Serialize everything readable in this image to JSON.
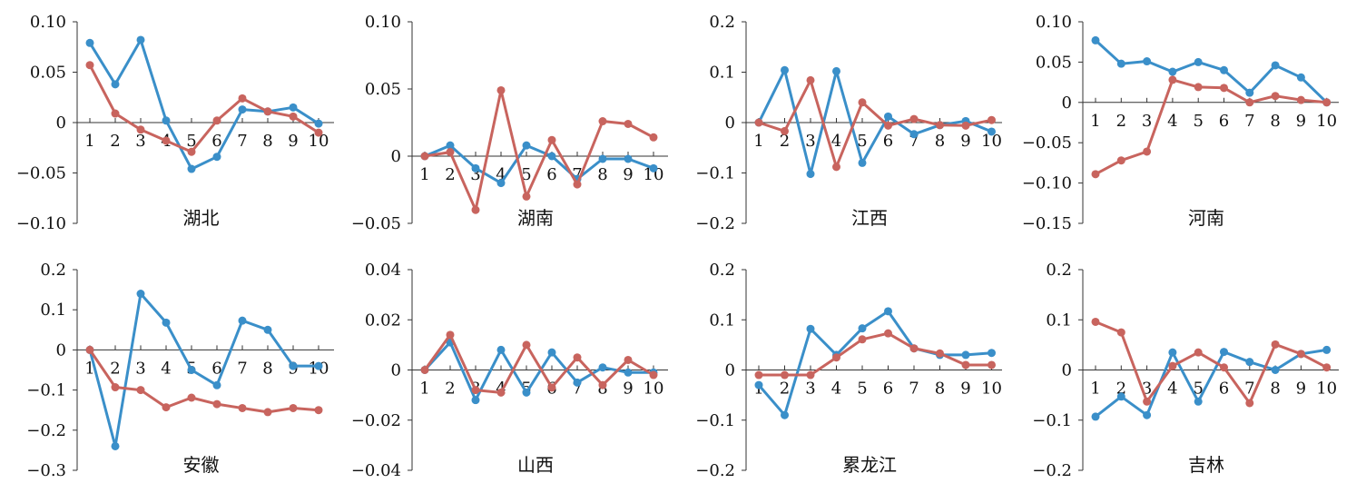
{
  "colors": {
    "series_a": "#3a8fc9",
    "series_b": "#c8645e",
    "axis": "#333333"
  },
  "chart_data": [
    {
      "type": "line",
      "title": "湖北",
      "ylim": [
        -0.1,
        0.1
      ],
      "ytick_labels": [
        "0.10",
        "0.05",
        "0",
        "−0.05",
        "−0.10"
      ],
      "categories": [
        "1",
        "2",
        "3",
        "4",
        "5",
        "6",
        "7",
        "8",
        "9",
        "10"
      ],
      "series": [
        {
          "values": [
            0.079,
            0.038,
            0.082,
            0.002,
            -0.046,
            -0.034,
            0.013,
            0.011,
            0.015,
            -0.001
          ]
        },
        {
          "values": [
            0.057,
            0.009,
            -0.007,
            -0.018,
            -0.029,
            0.002,
            0.024,
            0.011,
            0.006,
            -0.01
          ]
        }
      ]
    },
    {
      "type": "line",
      "title": "湖南",
      "ylim": [
        -0.05,
        0.1
      ],
      "ytick_labels": [
        "0.10",
        "0.05",
        "0",
        "−0.05"
      ],
      "categories": [
        "1",
        "2",
        "3",
        "4",
        "5",
        "6",
        "7",
        "8",
        "9",
        "10"
      ],
      "series": [
        {
          "values": [
            0,
            0.008,
            -0.009,
            -0.02,
            0.008,
            0,
            -0.017,
            -0.002,
            -0.002,
            -0.009
          ]
        },
        {
          "values": [
            0,
            0.003,
            -0.04,
            0.049,
            -0.03,
            0.012,
            -0.021,
            0.026,
            0.024,
            0.014
          ]
        }
      ]
    },
    {
      "type": "line",
      "title": "江西",
      "ylim": [
        -0.2,
        0.2
      ],
      "ytick_labels": [
        "0.2",
        "0.1",
        "0",
        "−0.1",
        "−0.2"
      ],
      "categories": [
        "1",
        "2",
        "3",
        "4",
        "5",
        "6",
        "7",
        "8",
        "9",
        "10"
      ],
      "series": [
        {
          "values": [
            0,
            0.104,
            -0.102,
            0.102,
            -0.08,
            0.012,
            -0.023,
            -0.005,
            0.003,
            -0.018
          ]
        },
        {
          "values": [
            0,
            -0.017,
            0.084,
            -0.088,
            0.04,
            -0.006,
            0.007,
            -0.005,
            -0.006,
            0.005
          ]
        }
      ]
    },
    {
      "type": "line",
      "title": "河南",
      "ylim": [
        -0.15,
        0.1
      ],
      "ytick_labels": [
        "0.10",
        "0.05",
        "0",
        "−0.05",
        "−0.10",
        "−0.15"
      ],
      "categories": [
        "1",
        "2",
        "3",
        "4",
        "5",
        "6",
        "7",
        "8",
        "9",
        "10"
      ],
      "series": [
        {
          "values": [
            0.077,
            0.048,
            0.051,
            0.038,
            0.05,
            0.04,
            0.012,
            0.046,
            0.031,
            0
          ]
        },
        {
          "values": [
            -0.089,
            -0.072,
            -0.061,
            0.028,
            0.019,
            0.018,
            0,
            0.008,
            0.003,
            0
          ]
        }
      ]
    },
    {
      "type": "line",
      "title": "安徽",
      "ylim": [
        -0.3,
        0.2
      ],
      "ytick_labels": [
        "0.2",
        "0.1",
        "0",
        "−0.1",
        "−0.2",
        "−0.3"
      ],
      "categories": [
        "1",
        "2",
        "3",
        "4",
        "5",
        "6",
        "7",
        "8",
        "9",
        "10"
      ],
      "series": [
        {
          "values": [
            0,
            -0.24,
            0.14,
            0.068,
            -0.05,
            -0.088,
            0.073,
            0.05,
            -0.04,
            -0.04
          ]
        },
        {
          "values": [
            0,
            -0.093,
            -0.1,
            -0.143,
            -0.119,
            -0.135,
            -0.145,
            -0.155,
            -0.145,
            -0.15
          ]
        }
      ]
    },
    {
      "type": "line",
      "title": "山西",
      "ylim": [
        -0.04,
        0.04
      ],
      "ytick_labels": [
        "0.04",
        "0.02",
        "0",
        "−0.02",
        "−0.04"
      ],
      "categories": [
        "1",
        "2",
        "3",
        "4",
        "5",
        "6",
        "7",
        "8",
        "9",
        "10"
      ],
      "series": [
        {
          "values": [
            0,
            0.011,
            -0.012,
            0.008,
            -0.009,
            0.007,
            -0.005,
            0.001,
            -0.001,
            -0.001
          ]
        },
        {
          "values": [
            0,
            0.014,
            -0.008,
            -0.009,
            0.01,
            -0.007,
            0.005,
            -0.006,
            0.004,
            -0.002
          ]
        }
      ]
    },
    {
      "type": "line",
      "title": "累龙江",
      "ylim": [
        -0.2,
        0.2
      ],
      "ytick_labels": [
        "0.2",
        "0.1",
        "0",
        "−0.1",
        "−0.2"
      ],
      "categories": [
        "1",
        "2",
        "3",
        "4",
        "5",
        "6",
        "7",
        "8",
        "9",
        "10"
      ],
      "series": [
        {
          "values": [
            -0.03,
            -0.09,
            0.082,
            0.03,
            0.083,
            0.117,
            0.043,
            0.03,
            0.03,
            0.034
          ]
        },
        {
          "values": [
            -0.01,
            -0.01,
            -0.01,
            0.025,
            0.061,
            0.073,
            0.043,
            0.033,
            0.01,
            0.01
          ]
        }
      ]
    },
    {
      "type": "line",
      "title": "吉林",
      "ylim": [
        -0.2,
        0.2
      ],
      "ytick_labels": [
        "0.2",
        "0.1",
        "0",
        "−0.1",
        "−0.2"
      ],
      "categories": [
        "1",
        "2",
        "3",
        "4",
        "5",
        "6",
        "7",
        "8",
        "9",
        "10"
      ],
      "series": [
        {
          "values": [
            -0.093,
            -0.053,
            -0.09,
            0.035,
            -0.063,
            0.036,
            0.016,
            0,
            0.032,
            0.04
          ]
        },
        {
          "values": [
            0.096,
            0.075,
            -0.063,
            0.008,
            0.035,
            0.005,
            -0.066,
            0.051,
            0.032,
            0.005
          ]
        }
      ]
    }
  ]
}
